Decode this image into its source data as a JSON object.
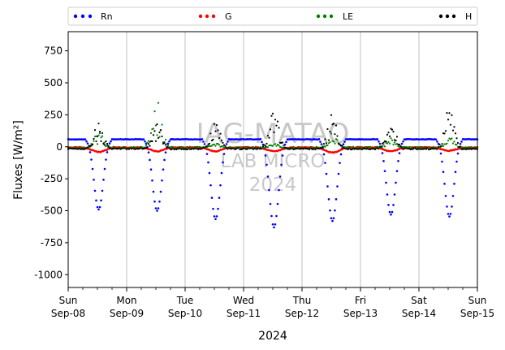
{
  "chart_data": {
    "type": "scatter",
    "ylabel": "Fluxes [W/m²]",
    "xlabel": "2024",
    "ylim": [
      -1100,
      900
    ],
    "yticks": [
      750,
      500,
      250,
      0,
      -250,
      -500,
      -750,
      -1000
    ],
    "xlim_days": [
      0,
      7
    ],
    "x_ticks": [
      {
        "day": "Sun",
        "date": "Sep-08"
      },
      {
        "day": "Mon",
        "date": "Sep-09"
      },
      {
        "day": "Tue",
        "date": "Sep-10"
      },
      {
        "day": "Wed",
        "date": "Sep-11"
      },
      {
        "day": "Thu",
        "date": "Sep-12"
      },
      {
        "day": "Fri",
        "date": "Sep-13"
      },
      {
        "day": "Sat",
        "date": "Sep-14"
      },
      {
        "day": "Sun",
        "date": "Sep-15"
      }
    ],
    "grid": "vertical at day ticks",
    "legend_position": "top, above plot",
    "watermark": [
      "IAG-MATAO",
      "LAB MICRO",
      "2024"
    ],
    "series": [
      {
        "name": "Rn",
        "color": "#0000ff",
        "night": 60,
        "day_min": [
          -490,
          -500,
          -565,
          -630,
          -580,
          -530,
          -545
        ]
      },
      {
        "name": "G",
        "color": "#ff0000",
        "night": -5,
        "day_min": [
          -40,
          -35,
          -35,
          -35,
          -45,
          -35,
          -30
        ]
      },
      {
        "name": "LE",
        "color": "#008000",
        "night": -10,
        "day_max": [
          120,
          370,
          40,
          30,
          110,
          100,
          80
        ]
      },
      {
        "name": "H",
        "color": "#000000",
        "night": -15,
        "day_max": [
          200,
          190,
          210,
          285,
          265,
          235,
          310
        ]
      }
    ]
  }
}
